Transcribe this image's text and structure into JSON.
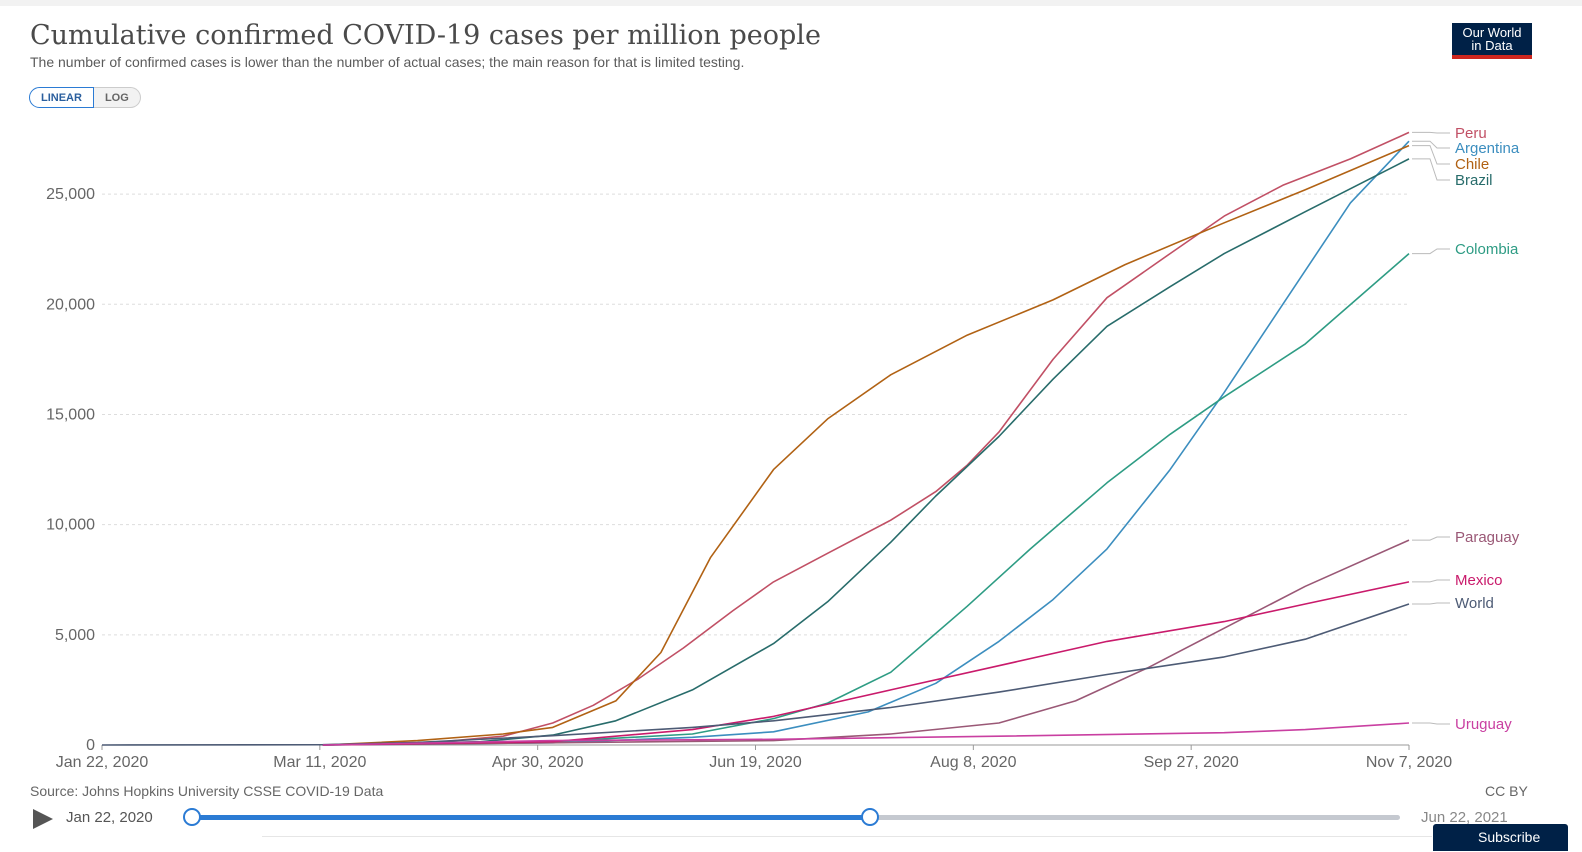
{
  "header": {
    "title": "Cumulative confirmed COVID-19 cases per million people",
    "subtitle": "The number of confirmed cases is lower than the number of actual cases; the main reason for that is limited testing.",
    "logo_line1": "Our World",
    "logo_line2": "in Data"
  },
  "scale_toggle": {
    "linear": "LINEAR",
    "log": "LOG",
    "selected": "LINEAR"
  },
  "footer": {
    "source": "Source: Johns Hopkins University CSSE COVID-19 Data",
    "license": "CC BY"
  },
  "timeline": {
    "start": "Jan 22, 2020",
    "end": "Jun 22, 2021",
    "selected_range": [
      "Jan 22, 2020",
      "Nov 7, 2020"
    ]
  },
  "subscribe": {
    "label": "Subscribe"
  },
  "chart_data": {
    "type": "line",
    "title": "Cumulative confirmed COVID-19 cases per million people",
    "ylim": [
      0,
      28000
    ],
    "y_ticks": [
      0,
      5000,
      10000,
      15000,
      20000,
      25000
    ],
    "y_tick_labels": [
      "0",
      "5,000",
      "10,000",
      "15,000",
      "20,000",
      "25,000"
    ],
    "x_tick_labels": [
      "Jan 22, 2020",
      "Mar 11, 2020",
      "Apr 30, 2020",
      "Jun 19, 2020",
      "Aug 8, 2020",
      "Sep 27, 2020",
      "Nov 7, 2020"
    ],
    "x_range": [
      "2020-01-22",
      "2020-11-07"
    ],
    "grid": true,
    "legend": "right, labels at line ends",
    "series": [
      {
        "name": "Peru",
        "color": "#c15065",
        "x": [
          "2020-03-11",
          "2020-04-01",
          "2020-04-20",
          "2020-05-01",
          "2020-05-10",
          "2020-05-20",
          "2020-05-30",
          "2020-06-10",
          "2020-06-19",
          "2020-07-01",
          "2020-07-15",
          "2020-07-25",
          "2020-08-01",
          "2020-08-08",
          "2020-08-20",
          "2020-09-01",
          "2020-09-15",
          "2020-09-27",
          "2020-10-10",
          "2020-10-25",
          "2020-11-07"
        ],
        "y": [
          0,
          50,
          400,
          1000,
          1800,
          3000,
          4400,
          6100,
          7400,
          8700,
          10200,
          11500,
          12700,
          14200,
          17500,
          20300,
          22300,
          24000,
          25400,
          26600,
          27800
        ]
      },
      {
        "name": "Argentina",
        "color": "#3c8ebf",
        "x": [
          "2020-03-11",
          "2020-05-01",
          "2020-06-01",
          "2020-06-19",
          "2020-07-10",
          "2020-07-25",
          "2020-08-08",
          "2020-08-20",
          "2020-09-01",
          "2020-09-15",
          "2020-09-27",
          "2020-10-10",
          "2020-10-25",
          "2020-11-07"
        ],
        "y": [
          0,
          100,
          350,
          600,
          1500,
          2800,
          4700,
          6600,
          8900,
          12500,
          16000,
          20000,
          24600,
          27400
        ]
      },
      {
        "name": "Chile",
        "color": "#b16214",
        "x": [
          "2020-03-11",
          "2020-04-01",
          "2020-04-20",
          "2020-05-01",
          "2020-05-15",
          "2020-05-25",
          "2020-06-05",
          "2020-06-19",
          "2020-07-01",
          "2020-07-15",
          "2020-08-01",
          "2020-08-20",
          "2020-09-05",
          "2020-09-27",
          "2020-10-15",
          "2020-11-07"
        ],
        "y": [
          0,
          200,
          500,
          800,
          2000,
          4200,
          8500,
          12500,
          14800,
          16800,
          18600,
          20200,
          21800,
          23700,
          25200,
          27200
        ]
      },
      {
        "name": "Brazil",
        "color": "#286c6b",
        "x": [
          "2020-03-11",
          "2020-04-15",
          "2020-05-01",
          "2020-05-15",
          "2020-06-01",
          "2020-06-19",
          "2020-07-01",
          "2020-07-15",
          "2020-07-25",
          "2020-08-08",
          "2020-08-20",
          "2020-09-01",
          "2020-09-15",
          "2020-09-27",
          "2020-10-15",
          "2020-11-07"
        ],
        "y": [
          0,
          150,
          450,
          1100,
          2500,
          4600,
          6500,
          9200,
          11300,
          14000,
          16600,
          19000,
          20800,
          22300,
          24200,
          26600
        ]
      },
      {
        "name": "Colombia",
        "color": "#2e9c84",
        "x": [
          "2020-03-11",
          "2020-05-01",
          "2020-06-01",
          "2020-06-19",
          "2020-07-01",
          "2020-07-15",
          "2020-08-01",
          "2020-08-15",
          "2020-09-01",
          "2020-09-15",
          "2020-09-27",
          "2020-10-15",
          "2020-11-07"
        ],
        "y": [
          0,
          150,
          500,
          1200,
          1900,
          3300,
          6300,
          8900,
          11900,
          14100,
          15800,
          18200,
          22300
        ]
      },
      {
        "name": "Paraguay",
        "color": "#9a5876",
        "x": [
          "2020-03-11",
          "2020-06-19",
          "2020-07-15",
          "2020-08-08",
          "2020-08-25",
          "2020-09-10",
          "2020-09-27",
          "2020-10-15",
          "2020-11-07"
        ],
        "y": [
          0,
          200,
          500,
          1000,
          2000,
          3500,
          5300,
          7200,
          9300
        ]
      },
      {
        "name": "Mexico",
        "color": "#c91a6b",
        "x": [
          "2020-03-11",
          "2020-05-01",
          "2020-06-01",
          "2020-06-19",
          "2020-07-15",
          "2020-08-08",
          "2020-09-01",
          "2020-09-27",
          "2020-10-15",
          "2020-11-07"
        ],
        "y": [
          0,
          150,
          700,
          1300,
          2500,
          3600,
          4700,
          5600,
          6400,
          7400
        ]
      },
      {
        "name": "World",
        "color": "#4d5b75",
        "x": [
          "2020-01-22",
          "2020-03-11",
          "2020-04-01",
          "2020-05-01",
          "2020-06-01",
          "2020-06-19",
          "2020-07-15",
          "2020-08-08",
          "2020-09-01",
          "2020-09-27",
          "2020-10-15",
          "2020-11-07"
        ],
        "y": [
          0,
          15,
          120,
          420,
          800,
          1100,
          1700,
          2400,
          3200,
          4000,
          4800,
          6400
        ]
      },
      {
        "name": "Uruguay",
        "color": "#c93fa1",
        "x": [
          "2020-03-11",
          "2020-05-01",
          "2020-06-19",
          "2020-08-08",
          "2020-09-27",
          "2020-10-15",
          "2020-11-07"
        ],
        "y": [
          0,
          200,
          260,
          400,
          560,
          700,
          1000
        ]
      }
    ]
  }
}
